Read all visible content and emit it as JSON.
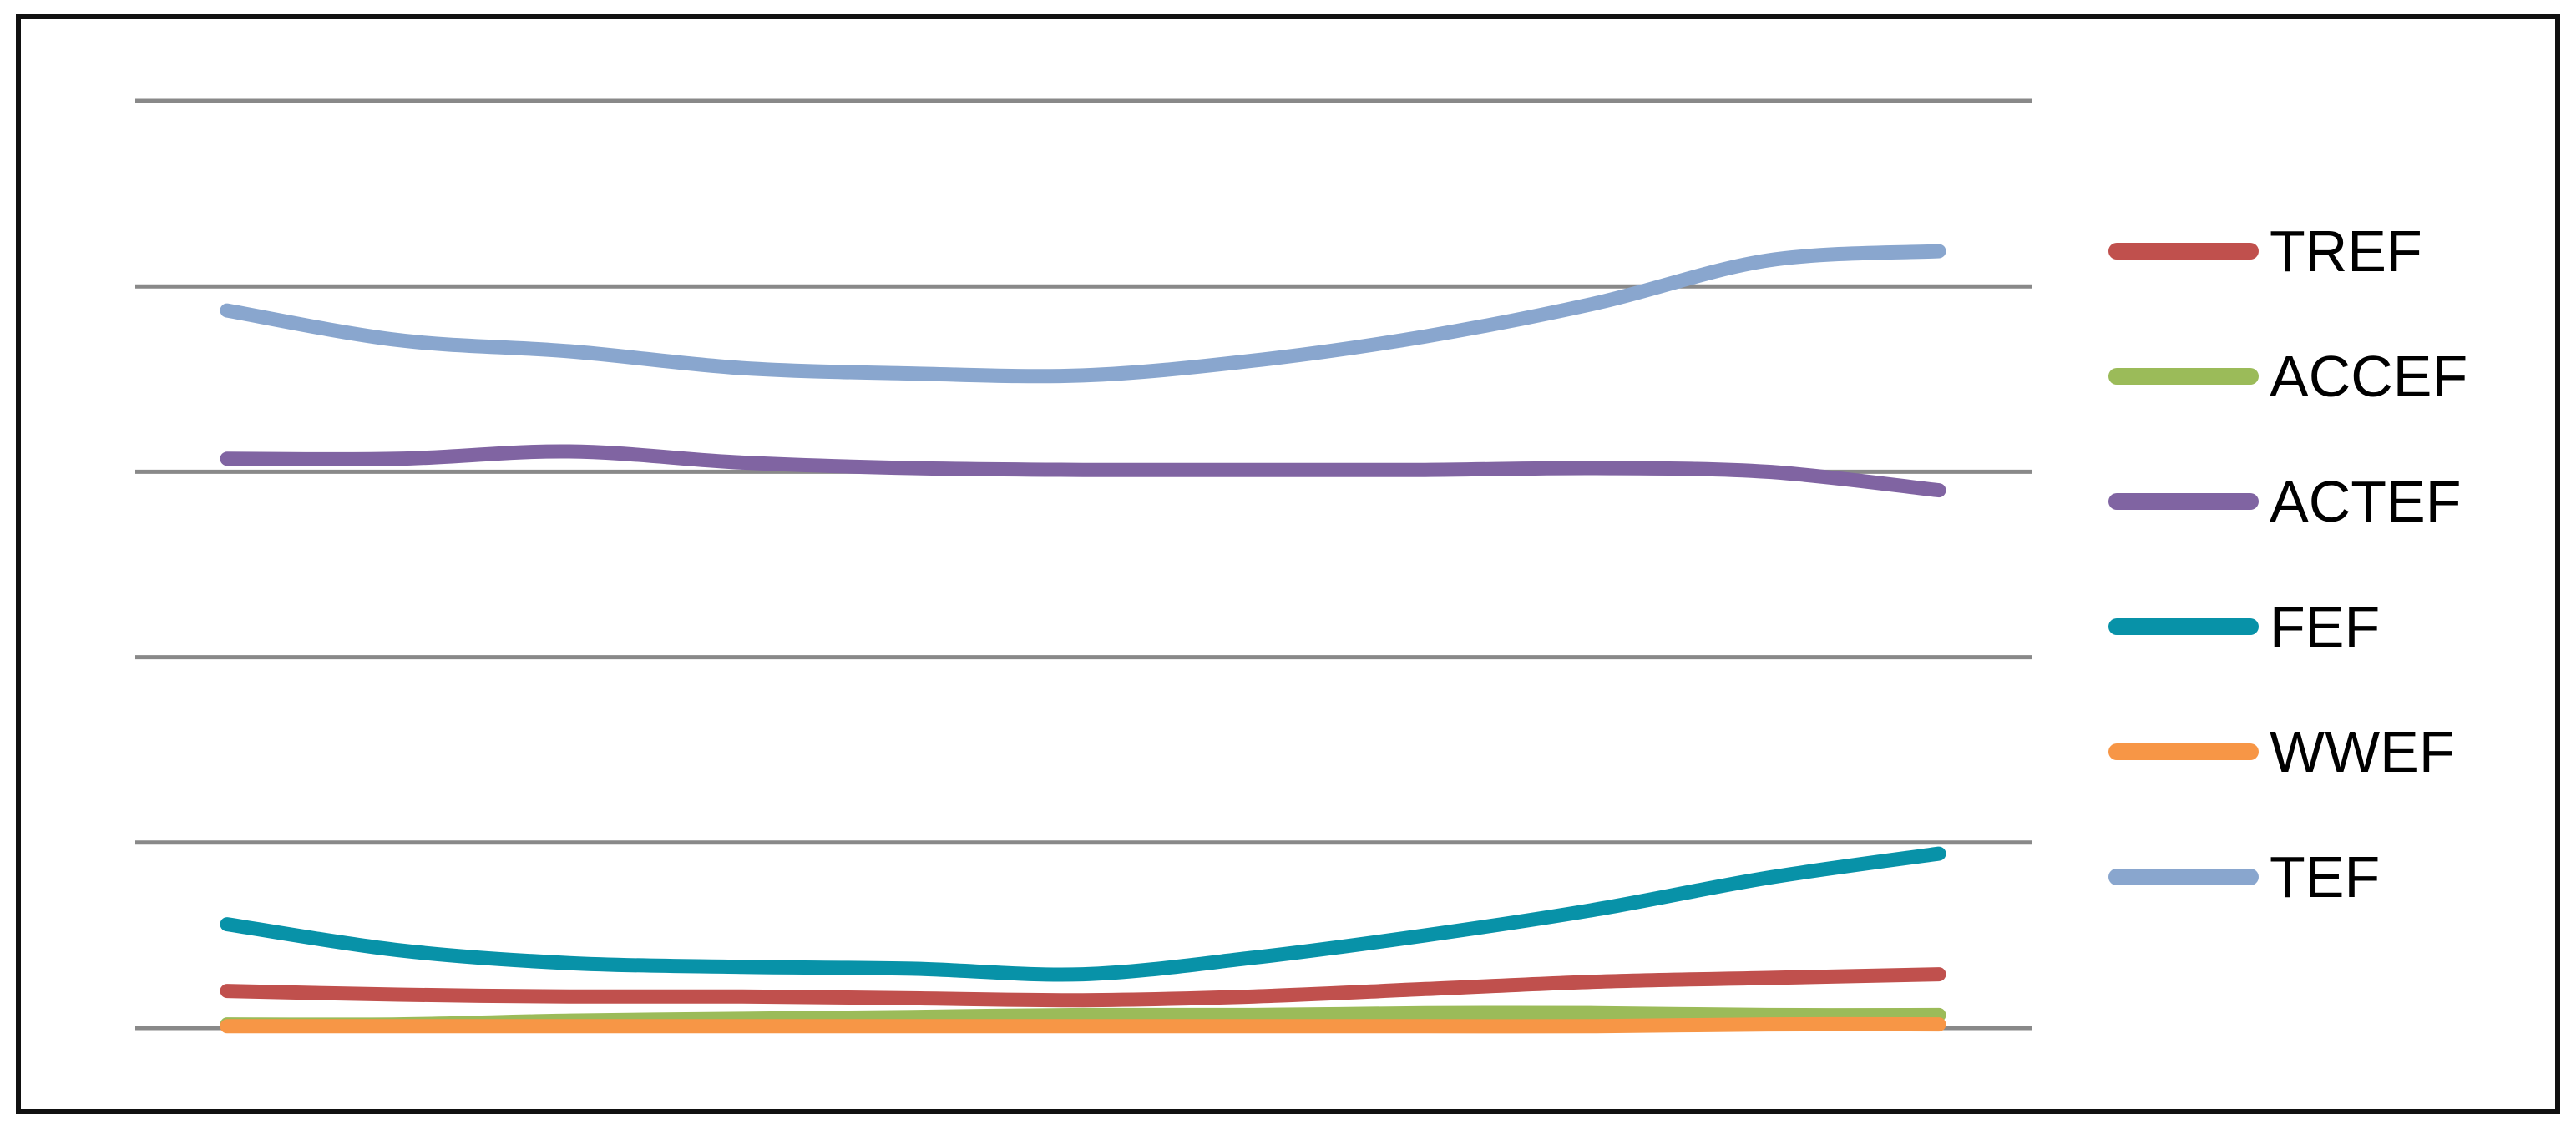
{
  "window": {
    "background_color": "#FFFFFF",
    "frame_border_color": "#111111"
  },
  "chart_data": {
    "type": "line",
    "title": "",
    "xlabel": "",
    "ylabel": "",
    "x_tick_labels_visible": false,
    "y_tick_labels_visible": false,
    "smoothed_lines": true,
    "x": [
      1,
      2,
      3,
      4,
      5,
      6,
      7,
      8,
      9,
      10,
      11
    ],
    "ylim": [
      0,
      5
    ],
    "y_unit": "gridline intervals (axis is unlabeled)",
    "grid": {
      "horizontal_gridlines": 6,
      "vertical_gridlines": 0,
      "color": "#898989"
    },
    "legend_position": "right",
    "series": [
      {
        "name": "TREF",
        "color": "#C0504D",
        "values": [
          0.2,
          0.18,
          0.17,
          0.17,
          0.16,
          0.15,
          0.17,
          0.21,
          0.25,
          0.27,
          0.29
        ]
      },
      {
        "name": "ACCEF",
        "color": "#9BBB59",
        "values": [
          0.02,
          0.02,
          0.04,
          0.05,
          0.06,
          0.07,
          0.07,
          0.08,
          0.08,
          0.07,
          0.07
        ]
      },
      {
        "name": "ACTEF",
        "color": "#8064A2",
        "values": [
          3.07,
          3.07,
          3.11,
          3.05,
          3.02,
          3.01,
          3.01,
          3.01,
          3.02,
          3.0,
          2.9
        ]
      },
      {
        "name": "FEF",
        "color": "#0892A8",
        "values": [
          0.56,
          0.42,
          0.35,
          0.33,
          0.32,
          0.29,
          0.38,
          0.5,
          0.64,
          0.81,
          0.94
        ]
      },
      {
        "name": "WWEF",
        "color": "#F79646",
        "values": [
          0.01,
          0.01,
          0.01,
          0.01,
          0.01,
          0.01,
          0.01,
          0.01,
          0.01,
          0.02,
          0.02
        ]
      },
      {
        "name": "TEF",
        "color": "#89A6CE",
        "values": [
          3.87,
          3.71,
          3.65,
          3.56,
          3.53,
          3.52,
          3.6,
          3.73,
          3.91,
          4.14,
          4.19
        ]
      }
    ]
  },
  "legend": {
    "items": [
      "TREF",
      "ACCEF",
      "ACTEF",
      "FEF",
      "WWEF",
      "TEF"
    ]
  }
}
